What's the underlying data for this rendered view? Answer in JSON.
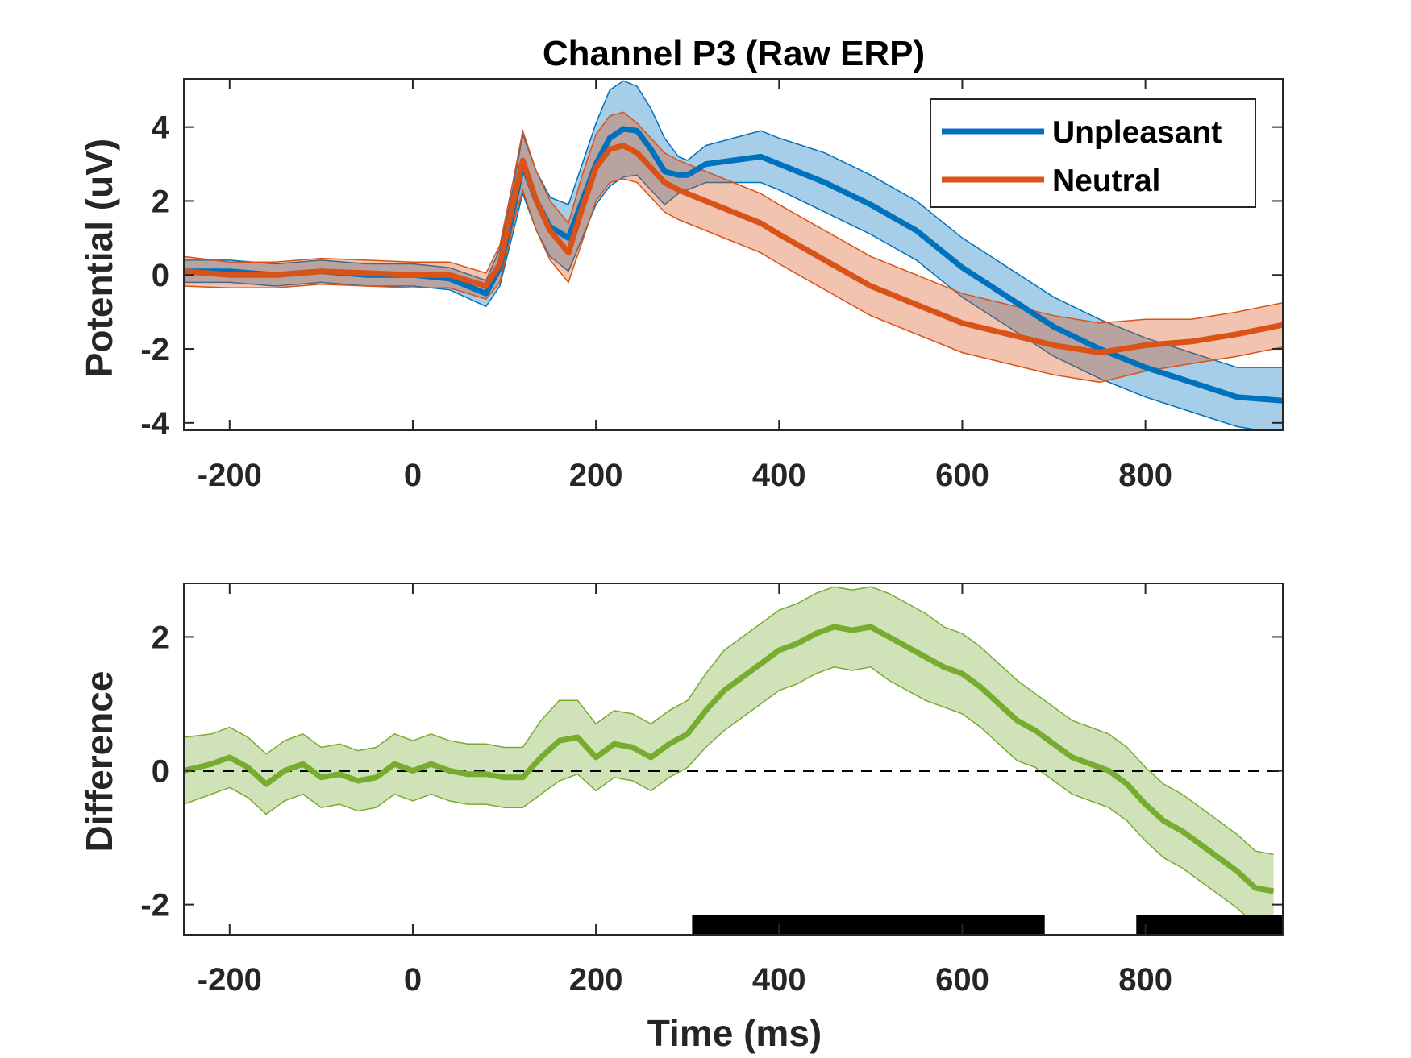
{
  "chart_data": [
    {
      "type": "line",
      "title": "Channel P3 (Raw ERP)",
      "xlabel": "",
      "ylabel": "Potential (uV)",
      "xlim": [
        -250,
        950
      ],
      "ylim": [
        -4.2,
        5.3
      ],
      "xticks": [
        -200,
        0,
        200,
        400,
        600,
        800
      ],
      "xtick_labels": [
        "-200",
        "0",
        "200",
        "400",
        "600",
        "800"
      ],
      "yticks": [
        -4,
        -2,
        0,
        2,
        4
      ],
      "ytick_labels": [
        "-4",
        "-2",
        "0",
        "2",
        "4"
      ],
      "grid": false,
      "legend_position": "top-right",
      "colors": {
        "Unpleasant": "#0072BD",
        "Neutral": "#D95319"
      },
      "x": [
        -250,
        -200,
        -150,
        -100,
        -50,
        0,
        40,
        80,
        95,
        110,
        120,
        135,
        150,
        170,
        185,
        200,
        215,
        230,
        245,
        260,
        275,
        290,
        300,
        320,
        350,
        380,
        400,
        450,
        500,
        550,
        600,
        650,
        700,
        750,
        800,
        850,
        900,
        950
      ],
      "series": [
        {
          "name": "Unpleasant",
          "values": [
            0.1,
            0.1,
            0.0,
            0.1,
            0.0,
            0.0,
            -0.1,
            -0.5,
            0.2,
            1.8,
            3.0,
            2.0,
            1.3,
            1.0,
            2.0,
            3.0,
            3.7,
            3.95,
            3.9,
            3.4,
            2.8,
            2.7,
            2.7,
            3.0,
            3.1,
            3.2,
            3.0,
            2.5,
            1.9,
            1.2,
            0.2,
            -0.6,
            -1.4,
            -2.0,
            -2.5,
            -2.9,
            -3.3,
            -3.4
          ],
          "ci_half_width": [
            0.3,
            0.3,
            0.3,
            0.3,
            0.3,
            0.3,
            0.3,
            0.35,
            0.5,
            0.6,
            0.8,
            0.8,
            0.8,
            0.9,
            1.0,
            1.1,
            1.3,
            1.3,
            1.2,
            1.1,
            0.9,
            0.5,
            0.4,
            0.5,
            0.6,
            0.7,
            0.7,
            0.8,
            0.8,
            0.8,
            0.8,
            0.8,
            0.8,
            0.8,
            0.8,
            0.8,
            0.8,
            0.9
          ]
        },
        {
          "name": "Neutral",
          "values": [
            0.1,
            0.0,
            0.0,
            0.1,
            0.05,
            0.0,
            0.0,
            -0.3,
            0.3,
            2.0,
            3.1,
            2.0,
            1.2,
            0.6,
            1.8,
            2.9,
            3.4,
            3.5,
            3.3,
            2.9,
            2.5,
            2.3,
            2.2,
            2.0,
            1.7,
            1.4,
            1.1,
            0.4,
            -0.3,
            -0.8,
            -1.3,
            -1.6,
            -1.9,
            -2.1,
            -1.9,
            -1.8,
            -1.6,
            -1.35
          ],
          "ci_half_width": [
            0.4,
            0.35,
            0.35,
            0.35,
            0.35,
            0.35,
            0.35,
            0.35,
            0.5,
            0.6,
            0.8,
            0.8,
            0.8,
            0.8,
            0.9,
            0.9,
            0.9,
            0.9,
            0.8,
            0.8,
            0.8,
            0.8,
            0.8,
            0.8,
            0.8,
            0.8,
            0.8,
            0.8,
            0.8,
            0.8,
            0.8,
            0.8,
            0.8,
            0.8,
            0.7,
            0.6,
            0.6,
            0.6
          ]
        }
      ]
    },
    {
      "type": "line",
      "title": "",
      "xlabel": "Time (ms)",
      "ylabel": "Difference",
      "xlim": [
        -250,
        950
      ],
      "ylim": [
        -2.45,
        2.8
      ],
      "xticks": [
        -200,
        0,
        200,
        400,
        600,
        800
      ],
      "xtick_labels": [
        "-200",
        "0",
        "200",
        "400",
        "600",
        "800"
      ],
      "yticks": [
        -2,
        0,
        2
      ],
      "ytick_labels": [
        "-2",
        "0",
        "2"
      ],
      "grid": false,
      "reference_line": {
        "y": 0,
        "style": "dashed",
        "color": "#000000"
      },
      "colors": {
        "difference": "#77AC30"
      },
      "x": [
        -250,
        -220,
        -200,
        -180,
        -160,
        -140,
        -120,
        -100,
        -80,
        -60,
        -40,
        -20,
        0,
        20,
        40,
        60,
        80,
        100,
        120,
        140,
        160,
        180,
        200,
        220,
        240,
        260,
        280,
        300,
        320,
        340,
        360,
        380,
        400,
        420,
        440,
        460,
        480,
        500,
        520,
        540,
        560,
        580,
        600,
        620,
        640,
        660,
        680,
        700,
        720,
        740,
        760,
        780,
        800,
        820,
        840,
        860,
        880,
        900,
        920,
        940
      ],
      "series": [
        {
          "name": "",
          "values": [
            0.0,
            0.1,
            0.2,
            0.05,
            -0.2,
            0.0,
            0.1,
            -0.1,
            -0.05,
            -0.15,
            -0.1,
            0.1,
            0.0,
            0.1,
            0.0,
            -0.05,
            -0.05,
            -0.1,
            -0.1,
            0.2,
            0.45,
            0.5,
            0.2,
            0.4,
            0.35,
            0.2,
            0.4,
            0.55,
            0.9,
            1.2,
            1.4,
            1.6,
            1.8,
            1.9,
            2.05,
            2.15,
            2.1,
            2.15,
            2.0,
            1.85,
            1.7,
            1.55,
            1.45,
            1.25,
            1.0,
            0.75,
            0.6,
            0.4,
            0.2,
            0.1,
            0.0,
            -0.2,
            -0.5,
            -0.75,
            -0.9,
            -1.1,
            -1.3,
            -1.5,
            -1.75,
            -1.8
          ]
        }
      ],
      "ci_half_width": [
        0.5,
        0.45,
        0.45,
        0.45,
        0.45,
        0.45,
        0.45,
        0.45,
        0.45,
        0.45,
        0.45,
        0.45,
        0.45,
        0.45,
        0.45,
        0.45,
        0.45,
        0.45,
        0.45,
        0.55,
        0.6,
        0.55,
        0.5,
        0.5,
        0.5,
        0.5,
        0.5,
        0.5,
        0.55,
        0.6,
        0.6,
        0.6,
        0.6,
        0.6,
        0.6,
        0.6,
        0.6,
        0.6,
        0.65,
        0.65,
        0.65,
        0.6,
        0.6,
        0.6,
        0.6,
        0.6,
        0.55,
        0.55,
        0.55,
        0.55,
        0.55,
        0.55,
        0.55,
        0.55,
        0.55,
        0.55,
        0.55,
        0.55,
        0.55,
        0.55
      ],
      "significance_bars": [
        [
          305,
          690
        ],
        [
          790,
          950
        ]
      ]
    }
  ]
}
